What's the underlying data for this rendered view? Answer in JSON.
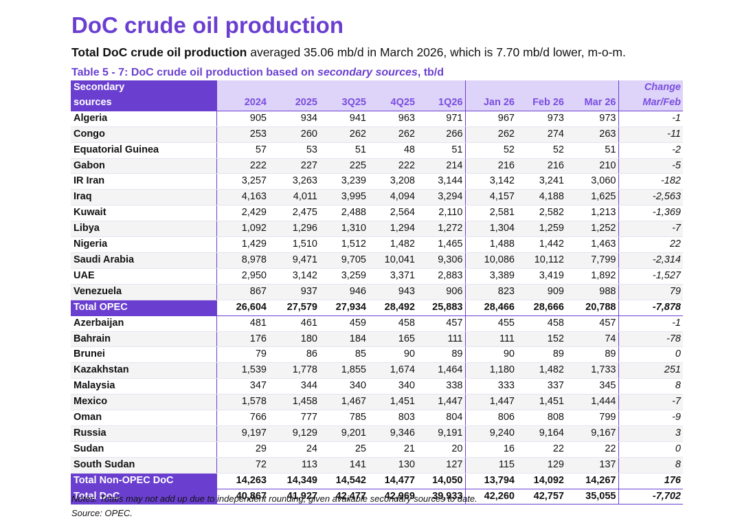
{
  "title": "DoC crude oil production",
  "subtitle": {
    "bold": "Total DoC crude oil production",
    "rest": " averaged 35.06 mb/d in March 2026, which is 7.70 mb/d lower, m-o-m."
  },
  "table_caption": {
    "prefix": "Table 5 - 7: DoC crude oil production based on ",
    "italic": "secondary sources",
    "suffix": ", tb/d"
  },
  "header": {
    "label_line1": "Secondary",
    "label_line2": "sources",
    "change_line1": "Change",
    "change_line2": "Mar/Feb",
    "columns": [
      "2024",
      "2025",
      "3Q25",
      "4Q25",
      "1Q26",
      "Jan 26",
      "Feb 26",
      "Mar 26"
    ]
  },
  "opec_rows": [
    {
      "name": "Algeria",
      "values": [
        "905",
        "934",
        "941",
        "963",
        "971",
        "967",
        "973",
        "973"
      ],
      "change": "-1"
    },
    {
      "name": "Congo",
      "values": [
        "253",
        "260",
        "262",
        "262",
        "266",
        "262",
        "274",
        "263"
      ],
      "change": "-11"
    },
    {
      "name": "Equatorial Guinea",
      "values": [
        "57",
        "53",
        "51",
        "48",
        "51",
        "52",
        "52",
        "51"
      ],
      "change": "-2"
    },
    {
      "name": "Gabon",
      "values": [
        "222",
        "227",
        "225",
        "222",
        "214",
        "216",
        "216",
        "210"
      ],
      "change": "-5"
    },
    {
      "name": "IR Iran",
      "values": [
        "3,257",
        "3,263",
        "3,239",
        "3,208",
        "3,144",
        "3,142",
        "3,241",
        "3,060"
      ],
      "change": "-182"
    },
    {
      "name": "Iraq",
      "values": [
        "4,163",
        "4,011",
        "3,995",
        "4,094",
        "3,294",
        "4,157",
        "4,188",
        "1,625"
      ],
      "change": "-2,563"
    },
    {
      "name": "Kuwait",
      "values": [
        "2,429",
        "2,475",
        "2,488",
        "2,564",
        "2,110",
        "2,581",
        "2,582",
        "1,213"
      ],
      "change": "-1,369"
    },
    {
      "name": "Libya",
      "values": [
        "1,092",
        "1,296",
        "1,310",
        "1,294",
        "1,272",
        "1,304",
        "1,259",
        "1,252"
      ],
      "change": "-7"
    },
    {
      "name": "Nigeria",
      "values": [
        "1,429",
        "1,510",
        "1,512",
        "1,482",
        "1,465",
        "1,488",
        "1,442",
        "1,463"
      ],
      "change": "22"
    },
    {
      "name": "Saudi Arabia",
      "values": [
        "8,978",
        "9,471",
        "9,705",
        "10,041",
        "9,306",
        "10,086",
        "10,112",
        "7,799"
      ],
      "change": "-2,314"
    },
    {
      "name": "UAE",
      "values": [
        "2,950",
        "3,142",
        "3,259",
        "3,371",
        "2,883",
        "3,389",
        "3,419",
        "1,892"
      ],
      "change": "-1,527"
    },
    {
      "name": "Venezuela",
      "values": [
        "867",
        "937",
        "946",
        "943",
        "906",
        "823",
        "909",
        "988"
      ],
      "change": "79"
    }
  ],
  "total_opec": {
    "name": "Total  OPEC",
    "values": [
      "26,604",
      "27,579",
      "27,934",
      "28,492",
      "25,883",
      "28,466",
      "28,666",
      "20,788"
    ],
    "change": "-7,878"
  },
  "nonopec_rows": [
    {
      "name": "Azerbaijan",
      "values": [
        "481",
        "461",
        "459",
        "458",
        "457",
        "455",
        "458",
        "457"
      ],
      "change": "-1"
    },
    {
      "name": "Bahrain",
      "values": [
        "176",
        "180",
        "184",
        "165",
        "111",
        "111",
        "152",
        "74"
      ],
      "change": "-78"
    },
    {
      "name": "Brunei",
      "values": [
        "79",
        "86",
        "85",
        "90",
        "89",
        "90",
        "89",
        "89"
      ],
      "change": "0"
    },
    {
      "name": "Kazakhstan",
      "values": [
        "1,539",
        "1,778",
        "1,855",
        "1,674",
        "1,464",
        "1,180",
        "1,482",
        "1,733"
      ],
      "change": "251"
    },
    {
      "name": "Malaysia",
      "values": [
        "347",
        "344",
        "340",
        "340",
        "338",
        "333",
        "337",
        "345"
      ],
      "change": "8"
    },
    {
      "name": "Mexico",
      "values": [
        "1,578",
        "1,458",
        "1,467",
        "1,451",
        "1,447",
        "1,447",
        "1,451",
        "1,444"
      ],
      "change": "-7"
    },
    {
      "name": "Oman",
      "values": [
        "766",
        "777",
        "785",
        "803",
        "804",
        "806",
        "808",
        "799"
      ],
      "change": "-9"
    },
    {
      "name": "Russia",
      "values": [
        "9,197",
        "9,129",
        "9,201",
        "9,346",
        "9,191",
        "9,240",
        "9,164",
        "9,167"
      ],
      "change": "3"
    },
    {
      "name": "Sudan",
      "values": [
        "29",
        "24",
        "25",
        "21",
        "20",
        "16",
        "22",
        "22"
      ],
      "change": "0"
    },
    {
      "name": "South Sudan",
      "values": [
        "72",
        "113",
        "141",
        "130",
        "127",
        "115",
        "129",
        "137"
      ],
      "change": "8"
    }
  ],
  "total_nonopec": {
    "name": "Total Non-OPEC DoC",
    "values": [
      "14,263",
      "14,349",
      "14,542",
      "14,477",
      "14,050",
      "13,794",
      "14,092",
      "14,267"
    ],
    "change": "176"
  },
  "total_doc": {
    "name": "Total DoC",
    "values": [
      "40,867",
      "41,927",
      "42,477",
      "42,969",
      "39,933",
      "42,260",
      "42,757",
      "35,055"
    ],
    "change": "-7,702"
  },
  "notes": "Notes: Totals may not add up due to independent rounding, given available secondary sources to date.",
  "source": "Source: OPEC."
}
